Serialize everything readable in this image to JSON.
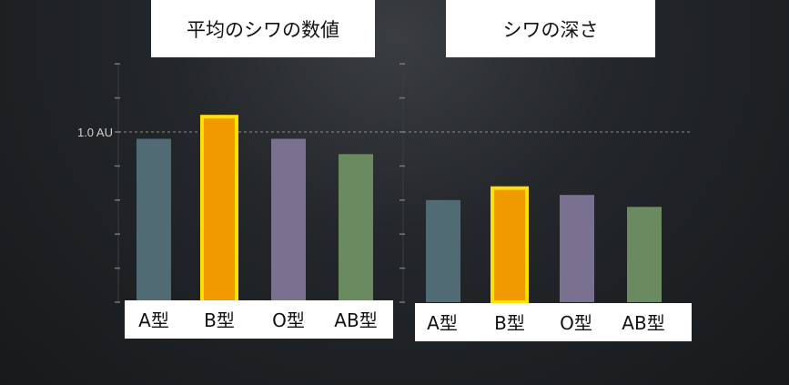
{
  "chart_data": [
    {
      "type": "bar",
      "title": "平均のシワの数値",
      "categories": [
        "A型",
        "B型",
        "O型",
        "AB型"
      ],
      "values": [
        0.96,
        1.09,
        0.96,
        0.87
      ],
      "ylim": [
        0,
        1.4
      ],
      "ytick_label": "1.0 AU",
      "reference_line": 1.0,
      "highlight": "B型",
      "colors": [
        "#506b73",
        "#f09a00",
        "#7a7090",
        "#6a8a60"
      ],
      "highlight_border": "#ffe000"
    },
    {
      "type": "bar",
      "title": "シワの深さ",
      "categories": [
        "A型",
        "B型",
        "O型",
        "AB型"
      ],
      "values": [
        0.6,
        0.67,
        0.63,
        0.56
      ],
      "ylim": [
        0,
        1.4
      ],
      "reference_line": 1.0,
      "highlight": "B型",
      "colors": [
        "#506b73",
        "#f09a00",
        "#7a7090",
        "#6a8a60"
      ],
      "highlight_border": "#ffe000"
    }
  ]
}
